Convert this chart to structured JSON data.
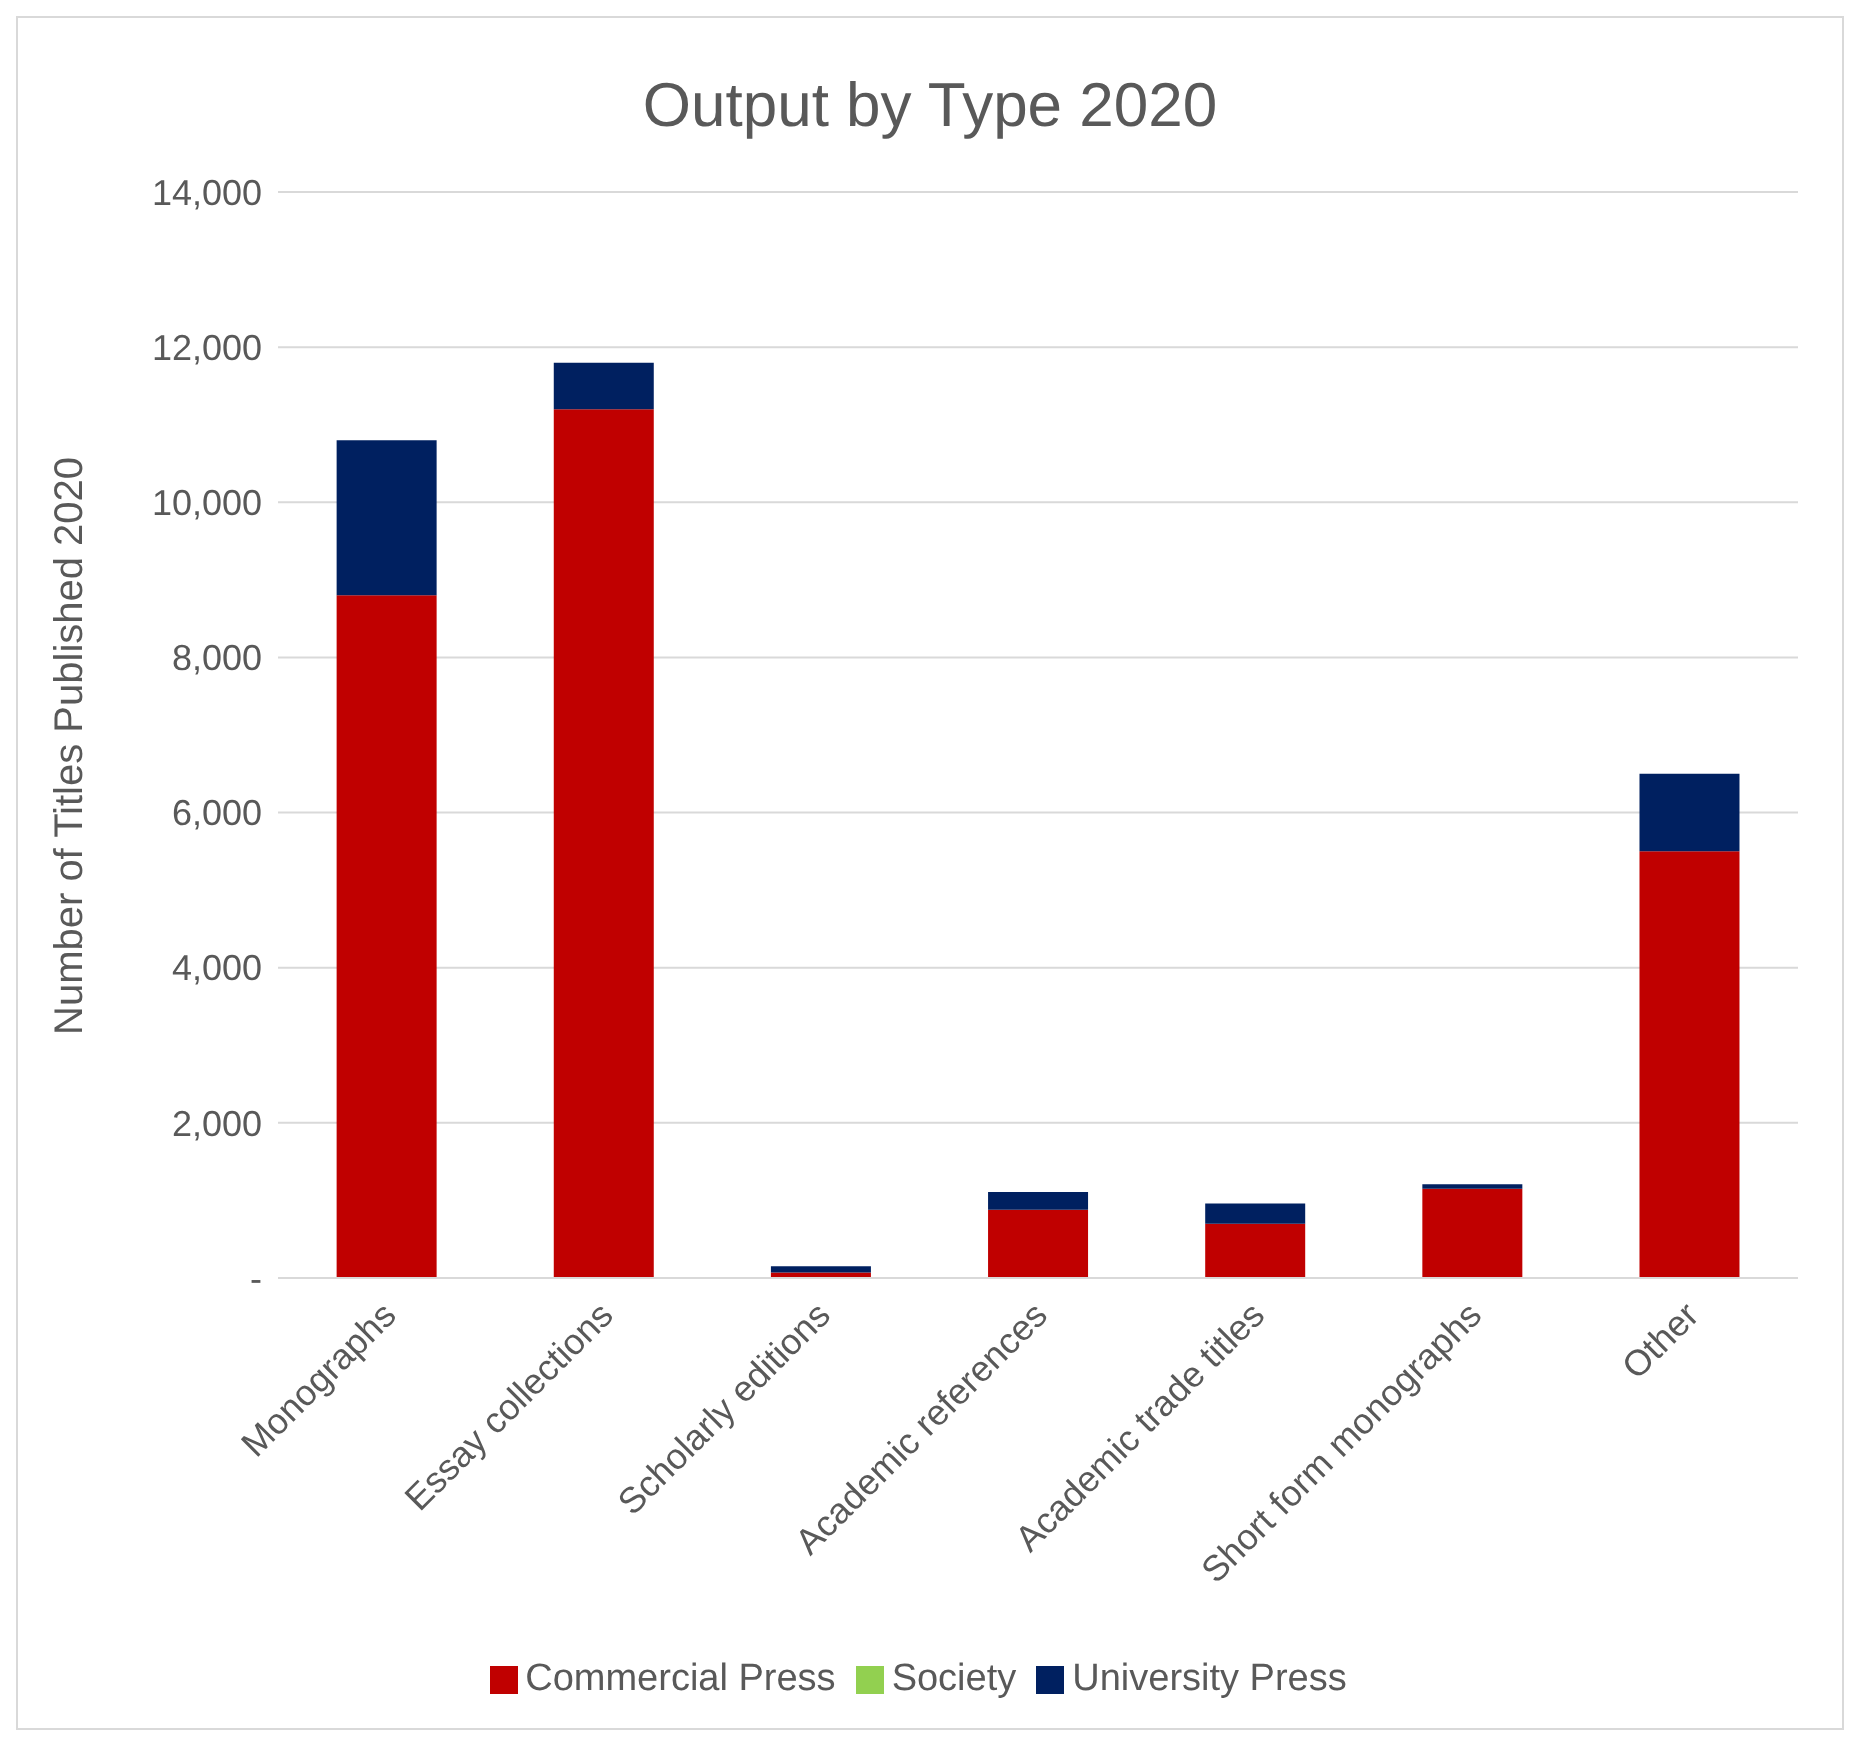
{
  "chart_data": {
    "type": "bar",
    "title": "Output by Type 2020",
    "ylabel": "Number of Titles Published 2020",
    "categories": [
      "Monographs",
      "Essay collections",
      "Scholarly editions",
      "Academic references",
      "Academic trade titles",
      "Short form monographs",
      "Other"
    ],
    "series": [
      {
        "name": "Commercial Press",
        "color": "#c00000",
        "values": [
          8800,
          11200,
          70,
          880,
          700,
          1150,
          5500
        ]
      },
      {
        "name": "Society",
        "color": "#92d050",
        "values": [
          0,
          0,
          0,
          0,
          0,
          0,
          0
        ]
      },
      {
        "name": "University Press",
        "color": "#002060",
        "values": [
          2000,
          600,
          80,
          230,
          260,
          60,
          1000
        ]
      }
    ],
    "stacked": true,
    "ylim": [
      0,
      14000
    ],
    "yticks": [
      {
        "value": 0,
        "label": "-"
      },
      {
        "value": 2000,
        "label": "2,000"
      },
      {
        "value": 4000,
        "label": "4,000"
      },
      {
        "value": 6000,
        "label": "6,000"
      },
      {
        "value": 8000,
        "label": "8,000"
      },
      {
        "value": 10000,
        "label": "10,000"
      },
      {
        "value": 12000,
        "label": "12,000"
      },
      {
        "value": 14000,
        "label": "14,000"
      }
    ],
    "grid": "y",
    "legend": "bottom"
  }
}
